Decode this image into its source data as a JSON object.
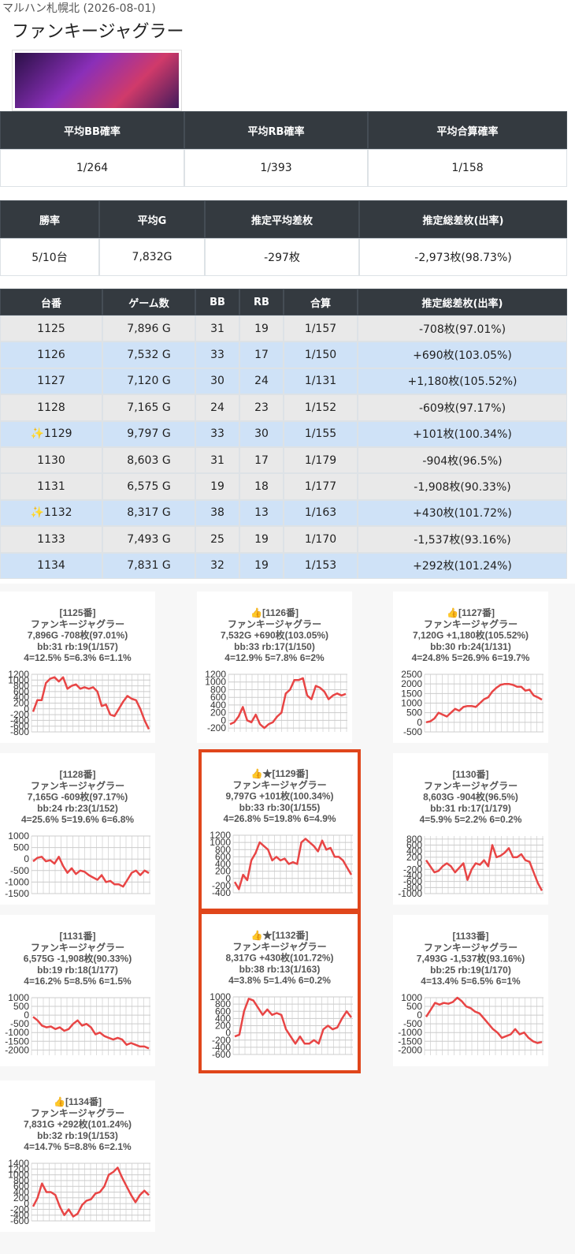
{
  "header": {
    "store": "マルハン札幌北 (2026-08-01)",
    "title": "ファンキージャグラー"
  },
  "summary": [
    {
      "headers": [
        "平均BB確率",
        "平均RB確率",
        "平均合算確率"
      ],
      "cells": [
        "1/264",
        "1/393",
        "1/158"
      ]
    },
    {
      "headers": [
        "勝率",
        "平均G",
        "推定平均差枚",
        "推定総差枚(出率)"
      ],
      "cells": [
        "5/10台",
        "7,832G",
        "-297枚",
        "-2,973枚(98.73%)"
      ]
    }
  ],
  "machines": {
    "headers": [
      "台番",
      "ゲーム数",
      "BB",
      "RB",
      "合算",
      "推定総差枚(出率)"
    ],
    "rows": [
      {
        "bg": "#e9e9e9",
        "cells": [
          "1125",
          "7,896 G",
          "31",
          "19",
          "1/157",
          "-708枚(97.01%)"
        ]
      },
      {
        "bg": "#cfe2f7",
        "cells": [
          "1126",
          "7,532 G",
          "33",
          "17",
          "1/150",
          "+690枚(103.05%)"
        ]
      },
      {
        "bg": "#cfe2f7",
        "cells": [
          "1127",
          "7,120 G",
          "30",
          "24",
          "1/131",
          "+1,180枚(105.52%)"
        ]
      },
      {
        "bg": "#e9e9e9",
        "cells": [
          "1128",
          "7,165 G",
          "24",
          "23",
          "1/152",
          "-609枚(97.17%)"
        ]
      },
      {
        "bg": "#cfe2f7",
        "cells": [
          "✨1129",
          "9,797 G",
          "33",
          "30",
          "1/155",
          "+101枚(100.34%)"
        ]
      },
      {
        "bg": "#e9e9e9",
        "cells": [
          "1130",
          "8,603 G",
          "31",
          "17",
          "1/179",
          "-904枚(96.5%)"
        ]
      },
      {
        "bg": "#e9e9e9",
        "cells": [
          "1131",
          "6,575 G",
          "19",
          "18",
          "1/177",
          "-1,908枚(90.33%)"
        ]
      },
      {
        "bg": "#cfe2f7",
        "cells": [
          "✨1132",
          "8,317 G",
          "38",
          "13",
          "1/163",
          "+430枚(101.72%)"
        ]
      },
      {
        "bg": "#e9e9e9",
        "cells": [
          "1133",
          "7,493 G",
          "25",
          "19",
          "1/170",
          "-1,537枚(93.16%)"
        ]
      },
      {
        "bg": "#cfe2f7",
        "cells": [
          "1134",
          "7,831 G",
          "32",
          "19",
          "1/153",
          "+292枚(101.24%)"
        ]
      }
    ]
  },
  "charts": [
    {
      "type": "line",
      "color": "#e84545",
      "highlight": false,
      "lines": [
        "[1125番]",
        "ファンキージャグラー",
        "7,896G -708枚(97.01%)",
        "bb:31 rb:19(1/157)",
        "4=12.5% 5=6.3% 6=1.1%"
      ],
      "ylim": [
        -800,
        1200
      ],
      "yticks": [
        1200,
        1000,
        800,
        600,
        400,
        200,
        0,
        -200,
        -400,
        -600,
        -800
      ],
      "values": [
        -100,
        300,
        300,
        900,
        1050,
        1100,
        950,
        1100,
        700,
        800,
        850,
        700,
        750,
        700,
        750,
        600,
        100,
        150,
        -200,
        -250,
        0,
        250,
        450,
        350,
        300,
        0,
        -400,
        -708
      ]
    },
    {
      "type": "line",
      "color": "#e84545",
      "highlight": false,
      "lines": [
        "👍[1126番]",
        "ファンキージャグラー",
        "7,532G +690枚(103.05%)",
        "bb:33 rb:17(1/150)",
        "4=12.9% 5=7.8% 6=2%"
      ],
      "ylim": [
        -300,
        1200
      ],
      "yticks": [
        1200,
        1000,
        800,
        600,
        400,
        200,
        0,
        -200
      ],
      "values": [
        -100,
        -50,
        100,
        350,
        0,
        -50,
        150,
        -100,
        -200,
        -100,
        -50,
        100,
        200,
        700,
        800,
        1050,
        1050,
        1100,
        650,
        550,
        900,
        850,
        750,
        550,
        650,
        700,
        650,
        690
      ]
    },
    {
      "type": "line",
      "color": "#e84545",
      "highlight": false,
      "lines": [
        "👍[1127番]",
        "ファンキージャグラー",
        "7,120G +1,180枚(105.52%)",
        "bb:30 rb:24(1/131)",
        "4=24.8% 5=26.9% 6=19.7%"
      ],
      "ylim": [
        -500,
        2500
      ],
      "yticks": [
        2500,
        2000,
        1500,
        1000,
        500,
        0,
        -500
      ],
      "values": [
        0,
        50,
        200,
        500,
        400,
        300,
        500,
        700,
        600,
        800,
        850,
        850,
        800,
        1000,
        1200,
        1300,
        1600,
        1800,
        1950,
        2000,
        2000,
        1950,
        1850,
        1850,
        1650,
        1700,
        1400,
        1300,
        1180
      ]
    },
    {
      "type": "line",
      "color": "#e84545",
      "highlight": false,
      "lines": [
        "[1128番]",
        "ファンキージャグラー",
        "7,165G -609枚(97.17%)",
        "bb:24 rb:23(1/152)",
        "4=25.6% 5=19.6% 6=6.8%"
      ],
      "ylim": [
        -1500,
        1000
      ],
      "yticks": [
        1000,
        500,
        0,
        -500,
        -1000,
        -1500
      ],
      "values": [
        -100,
        50,
        100,
        -100,
        -50,
        -200,
        100,
        -300,
        -600,
        -400,
        -650,
        -500,
        -550,
        -700,
        -800,
        -900,
        -700,
        -1000,
        -950,
        -1100,
        -1100,
        -1200,
        -900,
        -600,
        -500,
        -700,
        -500,
        -609
      ]
    },
    {
      "type": "line",
      "color": "#e84545",
      "highlight": true,
      "lines": [
        "👍★[1129番]",
        "ファンキージャグラー",
        "9,797G +101枚(100.34%)",
        "bb:33 rb:30(1/155)",
        "4=26.8% 5=19.8% 6=4.9%"
      ],
      "ylim": [
        -400,
        1200
      ],
      "yticks": [
        1200,
        1000,
        800,
        600,
        400,
        200,
        0,
        -200,
        -400
      ],
      "values": [
        -100,
        -300,
        100,
        -50,
        500,
        700,
        1000,
        900,
        800,
        500,
        600,
        500,
        550,
        400,
        450,
        400,
        1000,
        1100,
        1000,
        900,
        750,
        1050,
        800,
        850,
        600,
        600,
        500,
        300,
        101
      ]
    },
    {
      "type": "line",
      "color": "#e84545",
      "highlight": false,
      "lines": [
        "[1130番]",
        "ファンキージャグラー",
        "8,603G -904枚(96.5%)",
        "bb:31 rb:17(1/179)",
        "4=5.9% 5=2.2% 6=0.2%"
      ],
      "ylim": [
        -1000,
        900
      ],
      "yticks": [
        800,
        600,
        400,
        200,
        0,
        -200,
        -400,
        -600,
        -800,
        -1000
      ],
      "values": [
        100,
        -100,
        -300,
        -250,
        -100,
        0,
        -100,
        -300,
        -150,
        0,
        -550,
        -200,
        0,
        -50,
        100,
        -100,
        600,
        200,
        250,
        350,
        500,
        200,
        200,
        300,
        100,
        50,
        -300,
        -650,
        -904
      ]
    },
    {
      "type": "line",
      "color": "#e84545",
      "highlight": false,
      "lines": [
        "[1131番]",
        "ファンキージャグラー",
        "6,575G -1,908枚(90.33%)",
        "bb:19 rb:18(1/177)",
        "4=16.2% 5=8.5% 6=1.5%"
      ],
      "ylim": [
        -2300,
        1000
      ],
      "yticks": [
        1000,
        500,
        0,
        -500,
        -1000,
        -1500,
        -2000
      ],
      "values": [
        -100,
        -300,
        -600,
        -700,
        -650,
        -800,
        -700,
        -900,
        -800,
        -500,
        -300,
        -600,
        -500,
        -700,
        -1100,
        -1000,
        -1200,
        -1300,
        -1400,
        -1300,
        -1400,
        -1700,
        -1600,
        -1700,
        -1800,
        -1800,
        -1908
      ]
    },
    {
      "type": "line",
      "color": "#e84545",
      "highlight": true,
      "lines": [
        "👍★[1132番]",
        "ファンキージャグラー",
        "8,317G +430枚(101.72%)",
        "bb:38 rb:13(1/163)",
        "4=3.8% 5=1.4% 6=0.2%"
      ],
      "ylim": [
        -600,
        1000
      ],
      "yticks": [
        1000,
        800,
        600,
        400,
        200,
        0,
        -200,
        -400,
        -600
      ],
      "values": [
        -100,
        -50,
        600,
        950,
        900,
        700,
        500,
        650,
        500,
        550,
        500,
        100,
        -100,
        -300,
        -100,
        -300,
        -300,
        -200,
        -300,
        100,
        200,
        100,
        150,
        400,
        600,
        430
      ]
    },
    {
      "type": "line",
      "color": "#e84545",
      "highlight": false,
      "lines": [
        "[1133番]",
        "ファンキージャグラー",
        "7,493G -1,537枚(93.16%)",
        "bb:25 rb:19(1/170)",
        "4=13.4% 5=6.5% 6=1%"
      ],
      "ylim": [
        -2300,
        1000
      ],
      "yticks": [
        1000,
        500,
        0,
        -500,
        -1000,
        -1500,
        -2000
      ],
      "values": [
        -100,
        300,
        700,
        600,
        700,
        650,
        750,
        1000,
        800,
        500,
        400,
        200,
        100,
        -200,
        -500,
        -800,
        -1000,
        -1300,
        -1200,
        -1100,
        -800,
        -1100,
        -1000,
        -1300,
        -1500,
        -1600,
        -1537
      ]
    },
    {
      "type": "line",
      "color": "#e84545",
      "highlight": false,
      "lines": [
        "👍[1134番]",
        "ファンキージャグラー",
        "7,831G +292枚(101.24%)",
        "bb:32 rb:19(1/153)",
        "4=14.7% 5=8.8% 6=2.1%"
      ],
      "ylim": [
        -600,
        1400
      ],
      "yticks": [
        1400,
        1200,
        1000,
        800,
        600,
        400,
        200,
        0,
        -200,
        -400,
        -600
      ],
      "values": [
        -100,
        200,
        700,
        400,
        400,
        300,
        -100,
        -400,
        -200,
        -450,
        -350,
        -50,
        100,
        150,
        350,
        400,
        600,
        1000,
        1100,
        1250,
        900,
        600,
        300,
        50,
        300,
        450,
        292
      ]
    }
  ]
}
